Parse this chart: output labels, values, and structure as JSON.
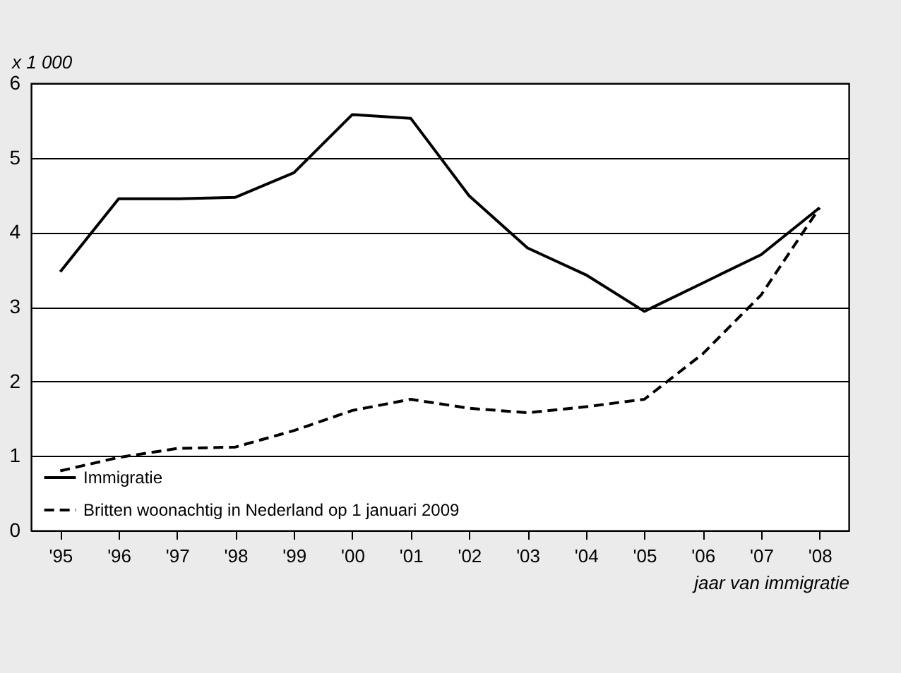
{
  "chart_data": {
    "type": "line",
    "ylabel": "x 1 000",
    "xlabel": "jaar van immigratie",
    "categories": [
      "'95",
      "'96",
      "'97",
      "'98",
      "'99",
      "'00",
      "'01",
      "'02",
      "'03",
      "'04",
      "'05",
      "'06",
      "'07",
      "'08"
    ],
    "series": [
      {
        "name": "Immigratie",
        "color": "#000000",
        "line_style": "solid",
        "values": [
          3.47,
          4.45,
          4.45,
          4.47,
          4.8,
          5.58,
          5.53,
          4.49,
          3.79,
          3.43,
          2.94,
          3.32,
          3.7,
          4.33
        ]
      },
      {
        "name": "Britten woonachtig in Nederland op 1 januari 2009",
        "color": "#000000",
        "line_style": "dashed",
        "values": [
          0.8,
          0.98,
          1.1,
          1.12,
          1.34,
          1.61,
          1.76,
          1.64,
          1.58,
          1.66,
          1.76,
          2.37,
          3.16,
          4.33
        ]
      }
    ],
    "ylim": [
      0,
      6
    ],
    "yticks": [
      0,
      1,
      2,
      3,
      4,
      5,
      6
    ],
    "grid": "y",
    "legend": "bottom left",
    "marker": "none"
  }
}
